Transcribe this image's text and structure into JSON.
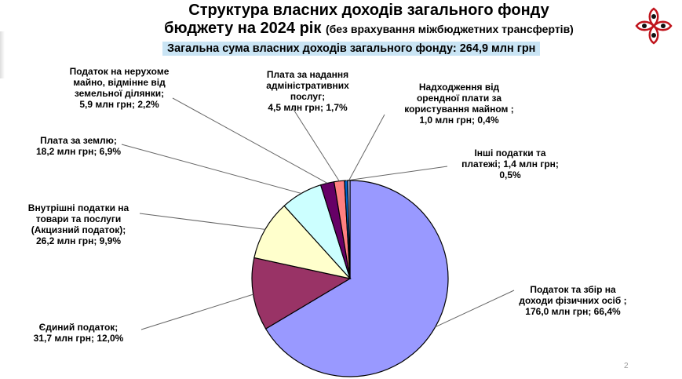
{
  "header": {
    "title_line1": "Структура власних доходів загального фонду",
    "title_line2": "бюджету на 2024 рік",
    "title_note": "(без врахування міжбюджетних трансфертів)",
    "total": "Загальна сума власних доходів загального фонду: 264,9 млн грн"
  },
  "page_number": "2",
  "logo": "ornament-logo",
  "chart_data": {
    "type": "pie",
    "unit": "млн грн",
    "slices": [
      {
        "label_lines": [
          "Податок та збір на",
          "доходи фізичних осіб ;",
          "176,0 млн грн; 66,4%"
        ],
        "value": 176.0,
        "percent": 66.4,
        "color": "#9999ff"
      },
      {
        "label_lines": [
          "Єдиний податок;",
          "31,7 млн грн; 12,0%"
        ],
        "value": 31.7,
        "percent": 12.0,
        "color": "#993366"
      },
      {
        "label_lines": [
          "Внутрішні податки на",
          "товари та послуги",
          "(Акцизний податок);",
          "26,2 млн грн; 9,9%"
        ],
        "value": 26.2,
        "percent": 9.9,
        "color": "#ffffcc"
      },
      {
        "label_lines": [
          "Плата за землю;",
          "18,2 млн грн; 6,9%"
        ],
        "value": 18.2,
        "percent": 6.9,
        "color": "#ccffff"
      },
      {
        "label_lines": [
          "Податок на нерухоме",
          "майно, відмінне від",
          "земельної ділянки;",
          "5,9 млн грн; 2,2%"
        ],
        "value": 5.9,
        "percent": 2.2,
        "color": "#660066"
      },
      {
        "label_lines": [
          "Плата за надання",
          "адміністративних",
          "послуг;",
          "4,5 млн грн; 1,7%"
        ],
        "value": 4.5,
        "percent": 1.7,
        "color": "#ff8080"
      },
      {
        "label_lines": [
          "Інші податки та",
          "платежі; 1,4 млн грн;",
          "0,5%"
        ],
        "value": 1.4,
        "percent": 0.5,
        "color": "#0066cc"
      },
      {
        "label_lines": [
          "Надходження від",
          "орендної плати за",
          "користування  майном ;",
          "1,0 млн грн; 0,4%"
        ],
        "value": 1.0,
        "percent": 0.4,
        "color": "#ccccff"
      }
    ]
  }
}
